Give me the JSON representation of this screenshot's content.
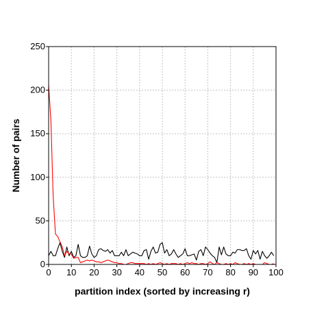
{
  "chart_data": {
    "type": "line",
    "title": "",
    "xlabel": "partition index (sorted by increasing r)",
    "ylabel": "Number of pairs",
    "xlim": [
      0,
      100
    ],
    "ylim": [
      0,
      250
    ],
    "xticks": [
      0,
      10,
      20,
      30,
      40,
      50,
      60,
      70,
      80,
      90,
      100
    ],
    "yticks": [
      0,
      50,
      100,
      150,
      200,
      250
    ],
    "grid": true,
    "legend": "none",
    "series": [
      {
        "color": "#000000",
        "x": [
          0,
          1,
          2,
          3,
          4,
          5,
          6,
          7,
          8,
          9,
          10,
          11,
          12,
          13,
          14,
          15,
          16,
          17,
          18,
          19,
          20,
          21,
          22,
          23,
          24,
          25,
          26,
          27,
          28,
          29,
          30,
          31,
          32,
          33,
          34,
          35,
          36,
          37,
          38,
          39,
          40,
          41,
          42,
          43,
          44,
          45,
          46,
          47,
          48,
          49,
          50,
          51,
          52,
          53,
          54,
          55,
          56,
          57,
          58,
          59,
          60,
          61,
          62,
          63,
          64,
          65,
          66,
          67,
          68,
          69,
          70,
          71,
          72,
          73,
          74,
          75,
          76,
          77,
          78,
          79,
          80,
          81,
          82,
          83,
          84,
          85,
          86,
          87,
          88,
          89,
          90,
          91,
          92,
          93,
          94,
          95,
          96,
          97,
          98,
          99
        ],
        "values": [
          10,
          15,
          10,
          10,
          18,
          25,
          15,
          8,
          20,
          10,
          15,
          8,
          10,
          23,
          10,
          8,
          8,
          10,
          21,
          12,
          8,
          10,
          17,
          18,
          16,
          15,
          17,
          13,
          16,
          10,
          10,
          10,
          14,
          10,
          17,
          10,
          12,
          14,
          13,
          12,
          10,
          10,
          16,
          17,
          6,
          15,
          20,
          13,
          14,
          23,
          25,
          13,
          17,
          10,
          12,
          17,
          12,
          8,
          10,
          12,
          18,
          10,
          10,
          11,
          12,
          5,
          15,
          17,
          10,
          20,
          17,
          13,
          10,
          8,
          2,
          20,
          11,
          20,
          12,
          10,
          10,
          14,
          13,
          17,
          17,
          16,
          16,
          18,
          10,
          6,
          16,
          12,
          16,
          6,
          15,
          10,
          7,
          10,
          14,
          10
        ]
      },
      {
        "color": "#ff0000",
        "x": [
          0,
          1,
          2,
          3,
          4,
          5,
          6,
          7,
          8,
          9,
          10,
          11,
          12,
          13,
          14,
          15,
          16,
          17,
          18,
          19,
          20,
          21,
          22,
          23,
          24,
          25,
          26,
          27,
          28,
          29,
          30,
          31,
          32,
          33,
          34,
          35,
          36,
          37,
          38,
          39,
          40,
          41,
          42,
          43,
          44,
          45,
          46,
          47,
          48,
          49,
          50,
          51,
          52,
          53,
          54,
          55,
          56,
          57,
          58,
          59,
          60,
          61,
          62,
          63,
          64,
          65,
          66,
          67,
          68,
          69,
          70,
          71,
          72,
          73,
          74,
          75,
          76,
          77,
          78,
          79,
          80,
          81,
          82,
          83,
          84,
          85,
          86,
          87,
          88,
          89,
          90,
          91,
          92,
          93,
          94,
          95,
          96,
          97,
          98,
          99
        ],
        "values": [
          206,
          165,
          78,
          35,
          32,
          26,
          20,
          10,
          15,
          12,
          12,
          7,
          8,
          8,
          2,
          3,
          4,
          5,
          4,
          5,
          4,
          3,
          3,
          2,
          3,
          4,
          5,
          4,
          3,
          2,
          2,
          1,
          1,
          0,
          0,
          1,
          2,
          2,
          1,
          1,
          1,
          1,
          1,
          0,
          1,
          0,
          1,
          0,
          1,
          2,
          1,
          0,
          1,
          0,
          1,
          1,
          1,
          0,
          1,
          0,
          1,
          2,
          1,
          2,
          1,
          1,
          0,
          1,
          1,
          0,
          1,
          3,
          1,
          0,
          2,
          1,
          0,
          0,
          1,
          0,
          1,
          0,
          2,
          1,
          0,
          0,
          1,
          0,
          1,
          0,
          1,
          0,
          0,
          0,
          0,
          2,
          1,
          0,
          0,
          1
        ]
      }
    ]
  }
}
